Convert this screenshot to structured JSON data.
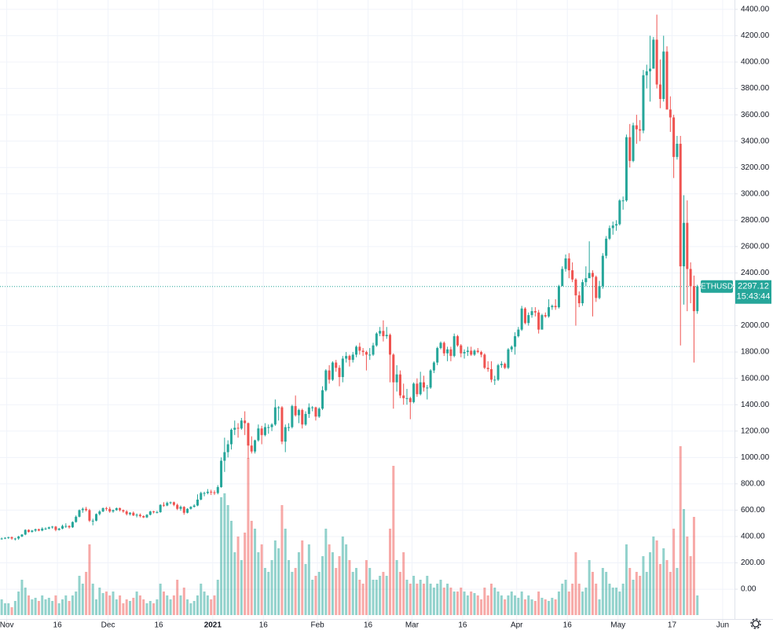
{
  "chart_data": {
    "type": "candlestick",
    "symbol": "ETHUSD",
    "countdown": "15:43:44",
    "up_color": "#26a69a",
    "down_color": "#ef5350",
    "candles": [
      [
        380,
        392,
        376,
        385
      ],
      [
        385,
        395,
        380,
        390
      ],
      [
        390,
        398,
        382,
        395
      ],
      [
        395,
        400,
        375,
        385
      ],
      [
        385,
        390,
        370,
        385
      ],
      [
        385,
        405,
        375,
        400
      ],
      [
        400,
        418,
        395,
        415
      ],
      [
        415,
        455,
        410,
        450
      ],
      [
        450,
        455,
        430,
        435
      ],
      [
        435,
        450,
        430,
        445
      ],
      [
        445,
        460,
        435,
        455
      ],
      [
        455,
        460,
        440,
        445
      ],
      [
        445,
        470,
        440,
        460
      ],
      [
        460,
        470,
        450,
        460
      ],
      [
        460,
        475,
        455,
        470
      ],
      [
        470,
        480,
        460,
        475
      ],
      [
        475,
        480,
        440,
        450
      ],
      [
        450,
        465,
        445,
        460
      ],
      [
        460,
        490,
        455,
        480
      ],
      [
        480,
        500,
        465,
        480
      ],
      [
        480,
        485,
        460,
        470
      ],
      [
        470,
        515,
        465,
        510
      ],
      [
        510,
        560,
        505,
        550
      ],
      [
        550,
        605,
        545,
        600
      ],
      [
        600,
        620,
        580,
        610
      ],
      [
        610,
        625,
        590,
        600
      ],
      [
        600,
        610,
        510,
        520
      ],
      [
        520,
        535,
        485,
        520
      ],
      [
        520,
        575,
        515,
        570
      ],
      [
        570,
        600,
        560,
        590
      ],
      [
        590,
        620,
        585,
        615
      ],
      [
        615,
        625,
        595,
        610
      ],
      [
        610,
        625,
        580,
        590
      ],
      [
        590,
        605,
        580,
        600
      ],
      [
        600,
        620,
        595,
        615
      ],
      [
        615,
        620,
        590,
        600
      ],
      [
        600,
        605,
        580,
        590
      ],
      [
        590,
        600,
        560,
        570
      ],
      [
        570,
        585,
        560,
        580
      ],
      [
        580,
        590,
        555,
        560
      ],
      [
        560,
        575,
        545,
        565
      ],
      [
        565,
        575,
        545,
        555
      ],
      [
        555,
        560,
        540,
        545
      ],
      [
        545,
        570,
        540,
        565
      ],
      [
        565,
        595,
        560,
        590
      ],
      [
        590,
        595,
        575,
        585
      ],
      [
        585,
        595,
        575,
        585
      ],
      [
        585,
        645,
        580,
        640
      ],
      [
        640,
        660,
        625,
        635
      ],
      [
        635,
        665,
        630,
        655
      ],
      [
        655,
        665,
        645,
        660
      ],
      [
        660,
        665,
        630,
        640
      ],
      [
        640,
        650,
        600,
        610
      ],
      [
        610,
        635,
        595,
        625
      ],
      [
        625,
        630,
        565,
        580
      ],
      [
        580,
        615,
        575,
        610
      ],
      [
        610,
        630,
        605,
        625
      ],
      [
        625,
        645,
        620,
        635
      ],
      [
        635,
        720,
        630,
        680
      ],
      [
        680,
        740,
        675,
        730
      ],
      [
        730,
        740,
        705,
        730
      ],
      [
        730,
        760,
        720,
        740
      ],
      [
        740,
        755,
        715,
        735
      ],
      [
        735,
        750,
        715,
        730
      ],
      [
        730,
        790,
        720,
        775
      ],
      [
        775,
        1000,
        770,
        975
      ],
      [
        975,
        1150,
        890,
        1040
      ],
      [
        1040,
        1130,
        1000,
        1100
      ],
      [
        1100,
        1220,
        1060,
        1210
      ],
      [
        1210,
        1280,
        1170,
        1225
      ],
      [
        1225,
        1260,
        1150,
        1220
      ],
      [
        1220,
        1300,
        1210,
        1280
      ],
      [
        1280,
        1350,
        1170,
        1260
      ],
      [
        1260,
        1265,
        990,
        1090
      ],
      [
        1090,
        1160,
        1030,
        1045
      ],
      [
        1045,
        1135,
        1030,
        1130
      ],
      [
        1130,
        1250,
        1120,
        1220
      ],
      [
        1220,
        1240,
        1100,
        1170
      ],
      [
        1170,
        1260,
        1160,
        1230
      ],
      [
        1230,
        1250,
        1180,
        1230
      ],
      [
        1230,
        1260,
        1200,
        1250
      ],
      [
        1250,
        1440,
        1240,
        1380
      ],
      [
        1380,
        1390,
        1280,
        1380
      ],
      [
        1380,
        1390,
        1100,
        1120
      ],
      [
        1120,
        1250,
        1040,
        1230
      ],
      [
        1230,
        1260,
        1200,
        1230
      ],
      [
        1230,
        1400,
        1220,
        1390
      ],
      [
        1390,
        1470,
        1310,
        1320
      ],
      [
        1320,
        1370,
        1260,
        1360
      ],
      [
        1360,
        1370,
        1220,
        1250
      ],
      [
        1250,
        1350,
        1240,
        1330
      ],
      [
        1330,
        1410,
        1300,
        1380
      ],
      [
        1380,
        1390,
        1350,
        1380
      ],
      [
        1380,
        1385,
        1280,
        1310
      ],
      [
        1310,
        1380,
        1300,
        1370
      ],
      [
        1370,
        1540,
        1360,
        1510
      ],
      [
        1510,
        1670,
        1500,
        1660
      ],
      [
        1660,
        1700,
        1560,
        1590
      ],
      [
        1590,
        1730,
        1580,
        1720
      ],
      [
        1720,
        1740,
        1650,
        1680
      ],
      [
        1680,
        1700,
        1540,
        1610
      ],
      [
        1610,
        1770,
        1570,
        1750
      ],
      [
        1750,
        1800,
        1720,
        1770
      ],
      [
        1770,
        1780,
        1690,
        1740
      ],
      [
        1740,
        1800,
        1720,
        1780
      ],
      [
        1780,
        1850,
        1760,
        1840
      ],
      [
        1840,
        1870,
        1780,
        1810
      ],
      [
        1810,
        1830,
        1770,
        1800
      ],
      [
        1800,
        1810,
        1660,
        1780
      ],
      [
        1780,
        1830,
        1740,
        1780
      ],
      [
        1780,
        1870,
        1770,
        1850
      ],
      [
        1850,
        1950,
        1840,
        1940
      ],
      [
        1940,
        1990,
        1920,
        1960
      ],
      [
        1960,
        2040,
        1880,
        1920
      ],
      [
        1920,
        1990,
        1900,
        1930
      ],
      [
        1930,
        1940,
        1570,
        1780
      ],
      [
        1780,
        1790,
        1370,
        1570
      ],
      [
        1570,
        1700,
        1500,
        1630
      ],
      [
        1630,
        1660,
        1450,
        1470
      ],
      [
        1470,
        1560,
        1400,
        1450
      ],
      [
        1450,
        1520,
        1400,
        1450
      ],
      [
        1450,
        1460,
        1290,
        1420
      ],
      [
        1420,
        1570,
        1410,
        1560
      ],
      [
        1560,
        1600,
        1460,
        1480
      ],
      [
        1480,
        1650,
        1470,
        1570
      ],
      [
        1570,
        1620,
        1500,
        1530
      ],
      [
        1530,
        1550,
        1440,
        1530
      ],
      [
        1530,
        1670,
        1520,
        1660
      ],
      [
        1660,
        1730,
        1640,
        1720
      ],
      [
        1720,
        1840,
        1700,
        1830
      ],
      [
        1830,
        1880,
        1820,
        1870
      ],
      [
        1870,
        1880,
        1770,
        1790
      ],
      [
        1790,
        1840,
        1730,
        1820
      ],
      [
        1820,
        1840,
        1730,
        1770
      ],
      [
        1770,
        1940,
        1760,
        1920
      ],
      [
        1920,
        1930,
        1840,
        1850
      ],
      [
        1850,
        1860,
        1760,
        1790
      ],
      [
        1790,
        1820,
        1750,
        1800
      ],
      [
        1800,
        1840,
        1770,
        1810
      ],
      [
        1810,
        1840,
        1770,
        1780
      ],
      [
        1780,
        1820,
        1770,
        1810
      ],
      [
        1810,
        1830,
        1790,
        1800
      ],
      [
        1800,
        1810,
        1760,
        1780
      ],
      [
        1780,
        1790,
        1670,
        1680
      ],
      [
        1680,
        1730,
        1650,
        1670
      ],
      [
        1670,
        1730,
        1570,
        1590
      ],
      [
        1590,
        1620,
        1550,
        1590
      ],
      [
        1590,
        1710,
        1580,
        1700
      ],
      [
        1700,
        1730,
        1680,
        1710
      ],
      [
        1710,
        1720,
        1670,
        1680
      ],
      [
        1680,
        1830,
        1670,
        1820
      ],
      [
        1820,
        1850,
        1800,
        1840
      ],
      [
        1840,
        1950,
        1780,
        1920
      ],
      [
        1920,
        1990,
        1910,
        1970
      ],
      [
        1970,
        2150,
        1960,
        2130
      ],
      [
        2130,
        2140,
        2010,
        2020
      ],
      [
        2020,
        2100,
        2000,
        2080
      ],
      [
        2080,
        2140,
        2060,
        2110
      ],
      [
        2110,
        2140,
        2070,
        2100
      ],
      [
        2100,
        2120,
        1940,
        1970
      ],
      [
        1970,
        2090,
        1970,
        2080
      ],
      [
        2080,
        2100,
        2060,
        2070
      ],
      [
        2070,
        2200,
        2060,
        2140
      ],
      [
        2140,
        2160,
        2120,
        2150
      ],
      [
        2150,
        2200,
        2120,
        2140
      ],
      [
        2140,
        2310,
        2130,
        2300
      ],
      [
        2300,
        2450,
        2300,
        2430
      ],
      [
        2430,
        2540,
        2410,
        2510
      ],
      [
        2510,
        2550,
        2360,
        2420
      ],
      [
        2420,
        2480,
        2330,
        2350
      ],
      [
        2350,
        2360,
        2000,
        2230
      ],
      [
        2230,
        2260,
        2140,
        2170
      ],
      [
        2170,
        2350,
        2150,
        2330
      ],
      [
        2330,
        2450,
        2300,
        2360
      ],
      [
        2360,
        2640,
        2360,
        2400
      ],
      [
        2400,
        2420,
        2070,
        2370
      ],
      [
        2370,
        2380,
        2180,
        2210
      ],
      [
        2210,
        2340,
        2200,
        2300
      ],
      [
        2300,
        2550,
        2280,
        2530
      ],
      [
        2530,
        2680,
        2510,
        2660
      ],
      [
        2660,
        2760,
        2650,
        2740
      ],
      [
        2740,
        2790,
        2690,
        2760
      ],
      [
        2760,
        2800,
        2720,
        2770
      ],
      [
        2770,
        2960,
        2760,
        2950
      ],
      [
        2950,
        2980,
        2880,
        2950
      ],
      [
        2950,
        3450,
        2940,
        3430
      ],
      [
        3430,
        3530,
        3200,
        3250
      ],
      [
        3250,
        3540,
        3240,
        3520
      ],
      [
        3520,
        3600,
        3380,
        3490
      ],
      [
        3490,
        3560,
        3400,
        3480
      ],
      [
        3480,
        3940,
        3460,
        3900
      ],
      [
        3900,
        3980,
        3800,
        3930
      ],
      [
        3930,
        4200,
        3700,
        3950
      ],
      [
        3950,
        4190,
        3950,
        4170
      ],
      [
        4170,
        4360,
        3800,
        3830
      ],
      [
        3830,
        4020,
        3650,
        3720
      ],
      [
        3720,
        4200,
        3700,
        4080
      ],
      [
        4080,
        4120,
        3640,
        3640
      ],
      [
        3640,
        3740,
        3470,
        3580
      ],
      [
        3580,
        3600,
        3120,
        3280
      ],
      [
        3280,
        3440,
        3260,
        3380
      ],
      [
        3380,
        3440,
        1850,
        2450
      ],
      [
        2450,
        2990,
        2160,
        2780
      ],
      [
        2780,
        2950,
        2110,
        2430
      ],
      [
        2430,
        2480,
        2170,
        2300
      ],
      [
        2300,
        2380,
        1720,
        2110
      ],
      [
        2110,
        2310,
        2090,
        2297.12
      ]
    ],
    "volume": [
      20,
      15,
      15,
      10,
      18,
      30,
      45,
      35,
      25,
      20,
      22,
      18,
      25,
      20,
      22,
      18,
      25,
      15,
      20,
      25,
      18,
      25,
      30,
      50,
      40,
      55,
      90,
      40,
      20,
      35,
      28,
      30,
      25,
      30,
      20,
      25,
      15,
      20,
      18,
      22,
      30,
      25,
      20,
      15,
      18,
      15,
      20,
      40,
      30,
      25,
      20,
      25,
      45,
      25,
      35,
      20,
      15,
      18,
      25,
      40,
      30,
      25,
      20,
      25,
      45,
      150,
      155,
      140,
      120,
      80,
      100,
      70,
      105,
      200,
      120,
      110,
      80,
      90,
      60,
      55,
      70,
      95,
      85,
      140,
      110,
      70,
      55,
      60,
      80,
      95,
      65,
      90,
      45,
      50,
      55,
      75,
      110,
      90,
      80,
      60,
      75,
      100,
      90,
      70,
      55,
      60,
      45,
      40,
      70,
      60,
      45,
      45,
      50,
      55,
      50,
      110,
      190,
      70,
      55,
      80,
      45,
      40,
      50,
      40,
      45,
      40,
      50,
      40,
      35,
      40,
      45,
      35,
      40,
      35,
      30,
      30,
      35,
      30,
      25,
      30,
      28,
      25,
      20,
      35,
      25,
      40,
      35,
      30,
      25,
      20,
      25,
      30,
      25,
      22,
      30,
      20,
      25,
      20,
      18,
      30,
      22,
      20,
      18,
      22,
      20,
      30,
      40,
      45,
      30,
      40,
      80,
      40,
      30,
      35,
      70,
      55,
      40,
      20,
      60,
      55,
      40,
      35,
      35,
      30,
      40,
      90,
      60,
      45,
      55,
      50,
      75,
      55,
      80,
      100,
      95,
      65,
      85,
      70,
      55,
      110,
      60,
      215,
      135,
      100,
      75,
      125,
      25
    ],
    "xlim": [
      0,
      217.5
    ],
    "xticks": [
      {
        "value": 2,
        "label": "Nov"
      },
      {
        "value": 17,
        "label": "16"
      },
      {
        "value": 32,
        "label": "Dec"
      },
      {
        "value": 47,
        "label": "16"
      },
      {
        "value": 63,
        "label": "2021"
      },
      {
        "value": 78,
        "label": "16"
      },
      {
        "value": 94,
        "label": "Feb"
      },
      {
        "value": 109,
        "label": "16"
      },
      {
        "value": 122,
        "label": "Mar"
      },
      {
        "value": 137,
        "label": "16"
      },
      {
        "value": 153,
        "label": "Apr"
      },
      {
        "value": 168,
        "label": "16"
      },
      {
        "value": 183,
        "label": "May"
      },
      {
        "value": 199,
        "label": "17"
      },
      {
        "value": 214,
        "label": "Jun"
      }
    ],
    "ylim": [
      -226,
      4471
    ],
    "yticks": [
      {
        "value": 0,
        "label": "0.00"
      },
      {
        "value": 200,
        "label": "200.00"
      },
      {
        "value": 400,
        "label": "400.00"
      },
      {
        "value": 600,
        "label": "600.00"
      },
      {
        "value": 800,
        "label": "800.00"
      },
      {
        "value": 1000,
        "label": "1000.00"
      },
      {
        "value": 1200,
        "label": "1200.00"
      },
      {
        "value": 1400,
        "label": "1400.00"
      },
      {
        "value": 1600,
        "label": "1600.00"
      },
      {
        "value": 1800,
        "label": "1800.00"
      },
      {
        "value": 2000,
        "label": "2000.00"
      },
      {
        "value": 2400,
        "label": "2400.00"
      },
      {
        "value": 2600,
        "label": "2600.00"
      },
      {
        "value": 2800,
        "label": "2800.00"
      },
      {
        "value": 3000,
        "label": "3000.00"
      },
      {
        "value": 3200,
        "label": "3200.00"
      },
      {
        "value": 3400,
        "label": "3400.00"
      },
      {
        "value": 3600,
        "label": "3600.00"
      },
      {
        "value": 3800,
        "label": "3800.00"
      },
      {
        "value": 4000,
        "label": "4000.00"
      },
      {
        "value": 4200,
        "label": "4200.00"
      },
      {
        "value": 4400,
        "label": "4400.00"
      }
    ],
    "grid": true
  }
}
